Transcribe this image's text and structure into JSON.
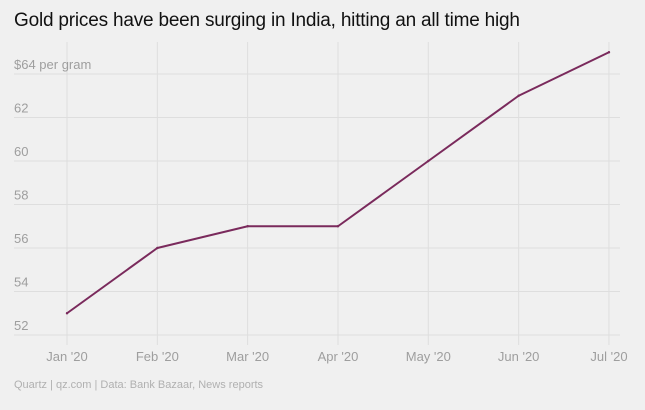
{
  "title": "Gold prices have been surging in India, hitting an all time high",
  "footer": "Quartz | qz.com | Data: Bank Bazaar, News reports",
  "colors": {
    "background": "#f0f0f0",
    "line": "#7a2a5c",
    "grid": "#dedede",
    "tick_text": "#9e9e9e"
  },
  "chart_data": {
    "type": "line",
    "title": "Gold prices have been surging in India, hitting an all time high",
    "xlabel": "",
    "ylabel": "",
    "x": [
      "Jan '20",
      "Feb '20",
      "Mar '20",
      "Apr '20",
      "May '20",
      "Jun '20",
      "Jul '20"
    ],
    "series": [
      {
        "values": [
          53,
          56,
          57,
          57,
          60,
          63,
          65
        ]
      }
    ],
    "y_ticks": [
      52,
      54,
      56,
      58,
      60,
      62,
      64
    ],
    "y_tick_labels": [
      "52",
      "54",
      "56",
      "58",
      "60",
      "62",
      "$64 per gram"
    ],
    "ylim": [
      52,
      65
    ],
    "grid": true,
    "legend": "none"
  }
}
